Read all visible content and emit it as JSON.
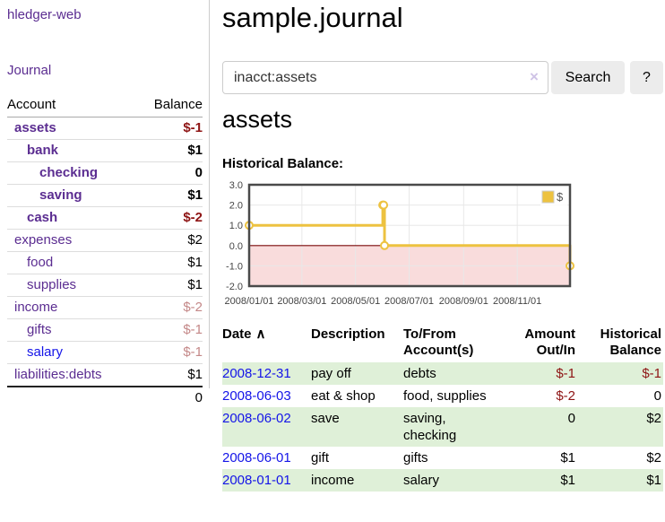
{
  "sidebar": {
    "brand": "hledger-web",
    "journal": "Journal",
    "accounts_table": {
      "headers": {
        "account": "Account",
        "balance": "Balance"
      },
      "rows": [
        {
          "name": "assets",
          "indent": 1,
          "bold": true,
          "balance": "$-1",
          "balance_class": "neg-strong"
        },
        {
          "name": "bank",
          "indent": 2,
          "bold": true,
          "balance": "$1",
          "balance_class": ""
        },
        {
          "name": "checking",
          "indent": 3,
          "bold": true,
          "balance": "0",
          "balance_class": ""
        },
        {
          "name": "saving",
          "indent": 3,
          "bold": true,
          "balance": "$1",
          "balance_class": ""
        },
        {
          "name": "cash",
          "indent": 2,
          "bold": true,
          "balance": "$-2",
          "balance_class": "neg-strong"
        },
        {
          "name": "expenses",
          "indent": 1,
          "bold": false,
          "balance": "$2",
          "balance_class": ""
        },
        {
          "name": "food",
          "indent": 2,
          "bold": false,
          "balance": "$1",
          "balance_class": ""
        },
        {
          "name": "supplies",
          "indent": 2,
          "bold": false,
          "balance": "$1",
          "balance_class": ""
        },
        {
          "name": "income",
          "indent": 1,
          "bold": false,
          "balance": "$-2",
          "balance_class": "neg-light"
        },
        {
          "name": "gifts",
          "indent": 2,
          "bold": false,
          "balance": "$-1",
          "balance_class": "neg-light"
        },
        {
          "name": "salary",
          "indent": 2,
          "bold": false,
          "balance": "$-1",
          "balance_class": "neg-light",
          "link_color": "blue"
        },
        {
          "name": "liabilities:debts",
          "indent": 1,
          "bold": false,
          "balance": "$1",
          "balance_class": ""
        }
      ],
      "total": "0"
    }
  },
  "main": {
    "title": "sample.journal",
    "search": {
      "value": "inacct:assets",
      "clear_icon": "×",
      "button": "Search",
      "help_button": "?"
    },
    "account_heading": "assets",
    "chart_label": "Historical Balance:"
  },
  "chart_data": {
    "type": "line",
    "title": "Historical Balance",
    "legend_label": "$",
    "series": [
      {
        "name": "$",
        "color": "#edc240",
        "points": [
          {
            "date": "2008-01-01",
            "value": 1
          },
          {
            "date": "2008-06-01",
            "value": 2
          },
          {
            "date": "2008-06-02",
            "value": 2
          },
          {
            "date": "2008-06-03",
            "value": 0
          },
          {
            "date": "2008-12-31",
            "value": -1
          }
        ]
      }
    ],
    "x_ticks": [
      "2008/01/01",
      "2008/03/01",
      "2008/05/01",
      "2008/07/01",
      "2008/09/01",
      "2008/11/01"
    ],
    "y_ticks": [
      "3.0",
      "2.0",
      "1.0",
      "0.0",
      "-1.0",
      "-2.0"
    ],
    "xmin": "2008-01-01",
    "xmax": "2008-12-31",
    "ymin": -2,
    "ymax": 3,
    "grid": true,
    "legend_position": "top-right",
    "negative_fill": "#f9dcdc",
    "zero_line_color": "#7a0a0a",
    "grid_color": "#e8e8e8",
    "border_color": "#4a4a4a"
  },
  "transactions": {
    "headers": {
      "date": "Date",
      "sort_icon": "∧",
      "description": "Description",
      "accounts": "To/From Account(s)",
      "amount": "Amount Out/In",
      "balance": "Historical Balance"
    },
    "rows": [
      {
        "date": "2008-12-31",
        "description": "pay off",
        "accounts": "debts",
        "amount": "$-1",
        "amount_neg": true,
        "balance": "$-1",
        "balance_neg": true
      },
      {
        "date": "2008-06-03",
        "description": "eat & shop",
        "accounts": "food, supplies",
        "amount": "$-2",
        "amount_neg": true,
        "balance": "0",
        "balance_neg": false
      },
      {
        "date": "2008-06-02",
        "description": "save",
        "accounts": "saving, checking",
        "amount": "0",
        "amount_neg": false,
        "balance": "$2",
        "balance_neg": false
      },
      {
        "date": "2008-06-01",
        "description": "gift",
        "accounts": "gifts",
        "amount": "$1",
        "amount_neg": false,
        "balance": "$2",
        "balance_neg": false
      },
      {
        "date": "2008-01-01",
        "description": "income",
        "accounts": "salary",
        "amount": "$1",
        "amount_neg": false,
        "balance": "$1",
        "balance_neg": false
      }
    ]
  }
}
